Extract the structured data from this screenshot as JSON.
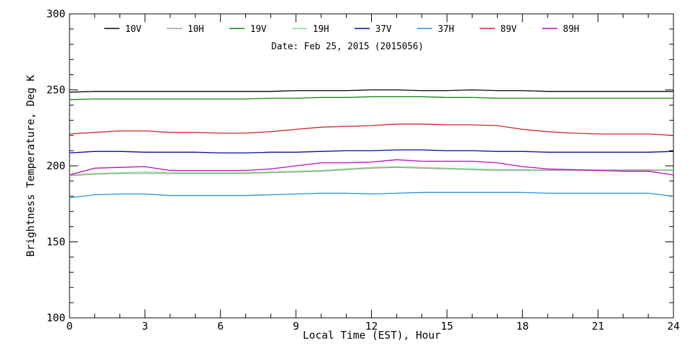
{
  "chart_data": {
    "type": "line",
    "title": "",
    "annotation": "Date: Feb 25, 2015 (2015056)",
    "xlabel": "Local Time (EST), Hour",
    "ylabel": "Brightness Temperature, Deg K",
    "xlim": [
      0,
      24
    ],
    "ylim": [
      100,
      300
    ],
    "xticks": [
      0,
      3,
      6,
      9,
      12,
      15,
      18,
      21,
      24
    ],
    "yticks": [
      100,
      150,
      200,
      250,
      300
    ],
    "grid": false,
    "legend_placement": "top",
    "x": [
      0,
      1,
      2,
      3,
      4,
      5,
      6,
      7,
      8,
      9,
      10,
      11,
      12,
      13,
      14,
      15,
      16,
      17,
      18,
      19,
      20,
      21,
      22,
      23,
      24
    ],
    "series": [
      {
        "name": "10V",
        "color": "#000000",
        "values": [
          248.5,
          249,
          249,
          249,
          249,
          249,
          249,
          249,
          249,
          249.5,
          249.5,
          249.5,
          250,
          250,
          249.5,
          249.5,
          250,
          249.5,
          249.5,
          249,
          249,
          249,
          249,
          249,
          249
        ]
      },
      {
        "name": "10H",
        "color": "#a0a0a0",
        "values": [
          193.5,
          194.5,
          195,
          195,
          195,
          195,
          195,
          195,
          195.5,
          196,
          196.5,
          197.5,
          198.5,
          199,
          198.5,
          198,
          197.5,
          197,
          197,
          197,
          197,
          197,
          197,
          197,
          197
        ]
      },
      {
        "name": "19V",
        "color": "#008000",
        "values": [
          243.5,
          244,
          244,
          244,
          244,
          244,
          244,
          244,
          244.5,
          244.5,
          245,
          245,
          245.5,
          245.5,
          245.5,
          245,
          245,
          244.5,
          244.5,
          244.5,
          244.5,
          244.5,
          244.5,
          244.5,
          244.5
        ]
      },
      {
        "name": "19H",
        "color": "#80e080",
        "values": [
          194,
          195,
          195.5,
          196,
          195.5,
          195.5,
          195.5,
          195.5,
          196,
          196.5,
          197,
          198,
          199,
          199.5,
          199,
          198.5,
          198,
          197.5,
          197.5,
          197.5,
          197.5,
          197.5,
          197.5,
          197.5,
          197.5
        ]
      },
      {
        "name": "37V",
        "color": "#0000a0",
        "values": [
          208.5,
          209.5,
          209.5,
          209,
          209,
          209,
          208.5,
          208.5,
          209,
          209,
          209.5,
          210,
          210,
          210.5,
          210.5,
          210,
          210,
          209.5,
          209.5,
          209,
          209,
          209,
          209,
          209,
          209.5
        ]
      },
      {
        "name": "37H",
        "color": "#2090d0",
        "values": [
          179,
          181,
          181.5,
          181.5,
          180.5,
          180.5,
          180.5,
          180.5,
          181,
          181.5,
          182,
          182,
          181.5,
          182,
          182.5,
          182.5,
          182.5,
          182.5,
          182.5,
          182,
          182,
          182,
          182,
          182,
          180
        ]
      },
      {
        "name": "89V",
        "color": "#d02020",
        "values": [
          221,
          222,
          223,
          223,
          222,
          222,
          221.5,
          221.5,
          222.5,
          224,
          225.5,
          226,
          226.5,
          227.5,
          227.5,
          227,
          227,
          226.5,
          224,
          222.5,
          221.5,
          221,
          221,
          221,
          220
        ]
      },
      {
        "name": "89H",
        "color": "#c000c0",
        "values": [
          194,
          198.5,
          199,
          199.5,
          197,
          197,
          197,
          197,
          198,
          200,
          202,
          202,
          202.5,
          204,
          203,
          203,
          203,
          202,
          199.5,
          198,
          197.5,
          197,
          196.5,
          196.5,
          194
        ]
      }
    ]
  }
}
